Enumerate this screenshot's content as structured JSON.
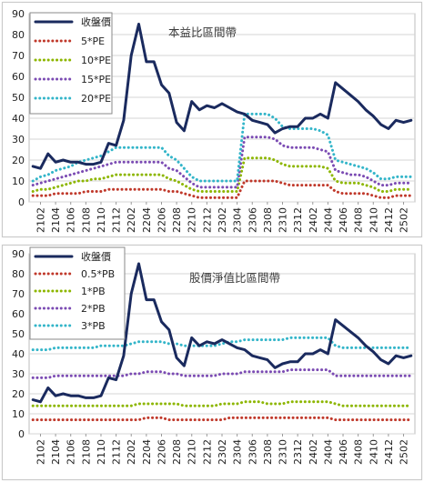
{
  "chart_data": [
    {
      "type": "line",
      "title": "本益比區間帶",
      "xlabel": "",
      "ylabel": "",
      "ylim": [
        0,
        90
      ],
      "yticks": [
        0,
        10,
        20,
        30,
        40,
        50,
        60,
        70,
        80,
        90
      ],
      "grid": "horizontal",
      "legend_position": "top-left",
      "categories": [
        "2101",
        "2102",
        "2103",
        "2104",
        "2105",
        "2106",
        "2107",
        "2108",
        "2109",
        "2110",
        "2111",
        "2112",
        "2201",
        "2202",
        "2203",
        "2204",
        "2205",
        "2206",
        "2207",
        "2208",
        "2209",
        "2210",
        "2211",
        "2212",
        "2301",
        "2302",
        "2303",
        "2304",
        "2305",
        "2306",
        "2307",
        "2308",
        "2309",
        "2310",
        "2311",
        "2312",
        "2401",
        "2402",
        "2403",
        "2404",
        "2405",
        "2406",
        "2407",
        "2408",
        "2409",
        "2410",
        "2411",
        "2412",
        "2501",
        "2502",
        "2503"
      ],
      "xtick_labels": [
        "2102",
        "2104",
        "2106",
        "2108",
        "2110",
        "2112",
        "2202",
        "2204",
        "2206",
        "2208",
        "2210",
        "2212",
        "2302",
        "2304",
        "2306",
        "2308",
        "2310",
        "2312",
        "2402",
        "2404",
        "2406",
        "2408",
        "2410",
        "2412",
        "2502"
      ],
      "series": [
        {
          "name": "收盤價",
          "color": "#1a2a5e",
          "style": "solid",
          "width": 3,
          "values": [
            17,
            16,
            23,
            19,
            20,
            19,
            19,
            18,
            18,
            19,
            28,
            27,
            39,
            70,
            85,
            67,
            67,
            56,
            52,
            38,
            34,
            48,
            44,
            46,
            45,
            47,
            45,
            43,
            42,
            39,
            38,
            37,
            33,
            35,
            36,
            36,
            40,
            40,
            42,
            40,
            57,
            54,
            51,
            48,
            44,
            41,
            37,
            35,
            39,
            38,
            39
          ]
        },
        {
          "name": "5*PE",
          "color": "#c0392b",
          "style": "dotted",
          "width": 3,
          "values": [
            3,
            3,
            3,
            4,
            4,
            4,
            4,
            5,
            5,
            5,
            6,
            6,
            6,
            6,
            6,
            6,
            6,
            6,
            5,
            5,
            4,
            3,
            2,
            2,
            2,
            2,
            2,
            2,
            10,
            10,
            10,
            10,
            10,
            9,
            8,
            8,
            8,
            8,
            8,
            8,
            5,
            4,
            4,
            4,
            4,
            3,
            2,
            2,
            3,
            3,
            3
          ]
        },
        {
          "name": "10*PE",
          "color": "#8db600",
          "style": "dotted",
          "width": 3,
          "values": [
            5,
            6,
            6,
            7,
            8,
            9,
            10,
            10,
            11,
            11,
            12,
            13,
            13,
            13,
            13,
            13,
            13,
            13,
            11,
            10,
            8,
            6,
            5,
            5,
            5,
            5,
            5,
            5,
            21,
            21,
            21,
            21,
            20,
            18,
            17,
            17,
            17,
            17,
            17,
            16,
            10,
            9,
            9,
            9,
            8,
            7,
            5,
            5,
            6,
            6,
            6
          ]
        },
        {
          "name": "15*PE",
          "color": "#7b4bb3",
          "style": "dotted",
          "width": 3,
          "values": [
            8,
            9,
            10,
            11,
            12,
            13,
            14,
            15,
            16,
            17,
            18,
            19,
            19,
            19,
            19,
            19,
            19,
            19,
            16,
            15,
            12,
            9,
            7,
            7,
            7,
            7,
            7,
            7,
            31,
            31,
            31,
            31,
            30,
            27,
            26,
            26,
            26,
            26,
            25,
            24,
            15,
            14,
            13,
            13,
            12,
            10,
            8,
            8,
            9,
            9,
            9
          ]
        },
        {
          "name": "20*PE",
          "color": "#33b5c9",
          "style": "dotted",
          "width": 3,
          "values": [
            10,
            12,
            13,
            15,
            16,
            17,
            19,
            20,
            21,
            22,
            24,
            26,
            26,
            26,
            26,
            26,
            26,
            26,
            22,
            20,
            16,
            12,
            10,
            10,
            10,
            10,
            10,
            10,
            42,
            42,
            42,
            42,
            40,
            36,
            35,
            35,
            35,
            35,
            34,
            32,
            20,
            19,
            18,
            17,
            16,
            14,
            11,
            11,
            12,
            12,
            12
          ]
        }
      ]
    },
    {
      "type": "line",
      "title": "股價淨值比區間帶",
      "xlabel": "",
      "ylabel": "",
      "ylim": [
        0,
        90
      ],
      "yticks": [
        0,
        10,
        20,
        30,
        40,
        50,
        60,
        70,
        80,
        90
      ],
      "grid": "horizontal",
      "legend_position": "top-left",
      "categories": [
        "2101",
        "2102",
        "2103",
        "2104",
        "2105",
        "2106",
        "2107",
        "2108",
        "2109",
        "2110",
        "2111",
        "2112",
        "2201",
        "2202",
        "2203",
        "2204",
        "2205",
        "2206",
        "2207",
        "2208",
        "2209",
        "2210",
        "2211",
        "2212",
        "2301",
        "2302",
        "2303",
        "2304",
        "2305",
        "2306",
        "2307",
        "2308",
        "2309",
        "2310",
        "2311",
        "2312",
        "2401",
        "2402",
        "2403",
        "2404",
        "2405",
        "2406",
        "2407",
        "2408",
        "2409",
        "2410",
        "2411",
        "2412",
        "2501",
        "2502",
        "2503"
      ],
      "xtick_labels": [
        "2102",
        "2104",
        "2106",
        "2108",
        "2110",
        "2112",
        "2202",
        "2204",
        "2206",
        "2208",
        "2210",
        "2212",
        "2302",
        "2304",
        "2306",
        "2308",
        "2310",
        "2312",
        "2402",
        "2404",
        "2406",
        "2408",
        "2410",
        "2412",
        "2502"
      ],
      "series": [
        {
          "name": "收盤價",
          "color": "#1a2a5e",
          "style": "solid",
          "width": 3,
          "values": [
            17,
            16,
            23,
            19,
            20,
            19,
            19,
            18,
            18,
            19,
            28,
            27,
            39,
            70,
            85,
            67,
            67,
            56,
            52,
            38,
            34,
            48,
            44,
            46,
            45,
            47,
            45,
            43,
            42,
            39,
            38,
            37,
            33,
            35,
            36,
            36,
            40,
            40,
            42,
            40,
            57,
            54,
            51,
            48,
            44,
            41,
            37,
            35,
            39,
            38,
            39
          ]
        },
        {
          "name": "0.5*PB",
          "color": "#c0392b",
          "style": "dotted",
          "width": 3,
          "values": [
            7,
            7,
            7,
            7,
            7,
            7,
            7,
            7,
            7,
            7,
            7,
            7,
            7,
            7,
            7,
            8,
            8,
            8,
            7,
            7,
            7,
            7,
            7,
            7,
            7,
            7,
            8,
            8,
            8,
            8,
            8,
            8,
            8,
            8,
            8,
            8,
            8,
            8,
            8,
            8,
            7,
            7,
            7,
            7,
            7,
            7,
            7,
            7,
            7,
            7,
            7
          ]
        },
        {
          "name": "1*PB",
          "color": "#8db600",
          "style": "dotted",
          "width": 3,
          "values": [
            14,
            14,
            14,
            14,
            14,
            14,
            14,
            14,
            14,
            14,
            14,
            14,
            14,
            14,
            15,
            15,
            15,
            15,
            15,
            15,
            14,
            14,
            14,
            14,
            14,
            15,
            15,
            15,
            16,
            16,
            16,
            15,
            15,
            15,
            16,
            16,
            16,
            16,
            16,
            16,
            15,
            14,
            14,
            14,
            14,
            14,
            14,
            14,
            14,
            14,
            14
          ]
        },
        {
          "name": "2*PB",
          "color": "#7b4bb3",
          "style": "dotted",
          "width": 3,
          "values": [
            28,
            28,
            28,
            29,
            29,
            29,
            29,
            29,
            29,
            29,
            29,
            29,
            29,
            30,
            30,
            31,
            31,
            31,
            30,
            30,
            29,
            29,
            29,
            29,
            29,
            30,
            30,
            30,
            31,
            31,
            31,
            31,
            31,
            31,
            32,
            32,
            32,
            32,
            32,
            32,
            29,
            29,
            29,
            29,
            29,
            29,
            29,
            29,
            29,
            29,
            29
          ]
        },
        {
          "name": "3*PB",
          "color": "#33b5c9",
          "style": "dotted",
          "width": 3,
          "values": [
            42,
            42,
            42,
            43,
            43,
            43,
            43,
            43,
            43,
            44,
            44,
            44,
            44,
            45,
            46,
            46,
            46,
            46,
            45,
            45,
            44,
            44,
            44,
            44,
            44,
            45,
            46,
            46,
            47,
            47,
            47,
            47,
            47,
            47,
            48,
            48,
            48,
            48,
            48,
            48,
            44,
            43,
            43,
            43,
            43,
            43,
            43,
            43,
            43,
            43,
            43
          ]
        }
      ]
    }
  ]
}
